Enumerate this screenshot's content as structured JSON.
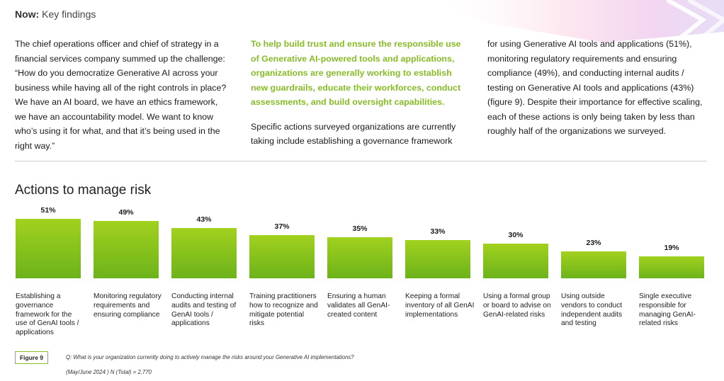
{
  "header": {
    "bold": "Now:",
    "rest": "Key findings"
  },
  "columns": {
    "col1": "The chief operations officer and chief of strategy in a financial services company summed up the challenge: “How do you democratize Generative AI across your business while having all of the right controls in place? We have an AI board, we have an ethics framework, we have an accountability model. We want to know who’s using it for what, and that it’s being used in the right way.”",
    "col2_lead": "To help build trust and ensure the responsible use of Generative AI-powered tools and applications, organizations are generally working to establish new guardrails, educate their workforces, conduct assessments, and build oversight capabilities.",
    "col2_body": "Specific actions surveyed organizations are currently taking include establishing a governance framework",
    "col3": "for using Generative AI tools and applications (51%), monitoring regulatory requirements and ensuring compliance (49%), and conducting internal audits / testing on Generative AI tools and applications (43%) (figure 9). Despite their importance for effective scaling, each of these actions is only being taken by less than roughly half of the organizations we surveyed."
  },
  "chart_data": {
    "type": "bar",
    "title": "Actions to manage risk",
    "categories": [
      "Establishing a governance framework for the use of GenAI tools / applications",
      "Monitoring regulatory requirements and ensuring compliance",
      "Conducting internal audits and testing of GenAI tools / applications",
      "Training practitioners how to recognize and mitigate potential risks",
      "Ensuring a human validates all GenAI-created content",
      "Keeping a formal inventory of all GenAI implementations",
      "Using a formal group or board to advise on GenAI-related risks",
      "Using outside vendors to conduct independent audits and testing",
      "Single executive responsible for managing GenAI-related risks"
    ],
    "values": [
      51,
      49,
      43,
      37,
      35,
      33,
      30,
      23,
      19
    ],
    "value_labels": [
      "51%",
      "49%",
      "43%",
      "37%",
      "35%",
      "33%",
      "30%",
      "23%",
      "19%"
    ],
    "unit": "%",
    "ylim": [
      0,
      51
    ],
    "bar_color_top": "#a2d11e",
    "bar_color_bottom": "#6cb31b"
  },
  "figure": {
    "label": "Figure 9",
    "question": "Q: What is your organization currently doing to actively manage the risks around your Generative AI implementations?",
    "sample": "(May/June 2024 ) N (Total) = 2,770"
  },
  "colors": {
    "accent": "#86bc25"
  }
}
